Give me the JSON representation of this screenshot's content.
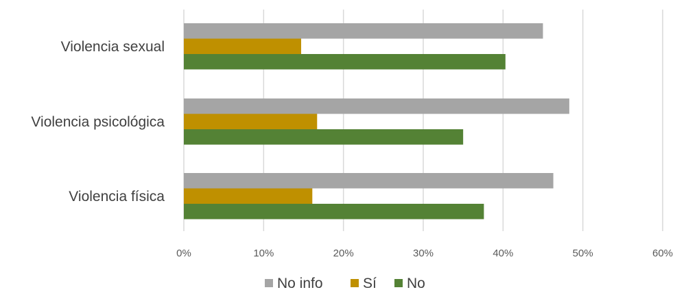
{
  "chart_data": {
    "type": "bar",
    "orientation": "horizontal",
    "categories": [
      "Violencia sexual",
      "Violencia psicológica",
      "Violencia física"
    ],
    "series": [
      {
        "name": "No info",
        "color": "#a5a5a5",
        "values": [
          45,
          48.3,
          46.3
        ]
      },
      {
        "name": "Sí",
        "color": "#bf9000",
        "values": [
          14.7,
          16.7,
          16.1
        ]
      },
      {
        "name": "No",
        "color": "#548235",
        "values": [
          40.3,
          35,
          37.6
        ]
      }
    ],
    "xlim": [
      0,
      60
    ],
    "x_ticks": [
      0,
      10,
      20,
      30,
      40,
      50,
      60
    ],
    "x_tick_labels": [
      "0%",
      "10%",
      "20%",
      "30%",
      "40%",
      "50%",
      "60%"
    ],
    "grid": "vertical",
    "legend_position": "bottom",
    "title": "",
    "xlabel": "",
    "ylabel": ""
  }
}
